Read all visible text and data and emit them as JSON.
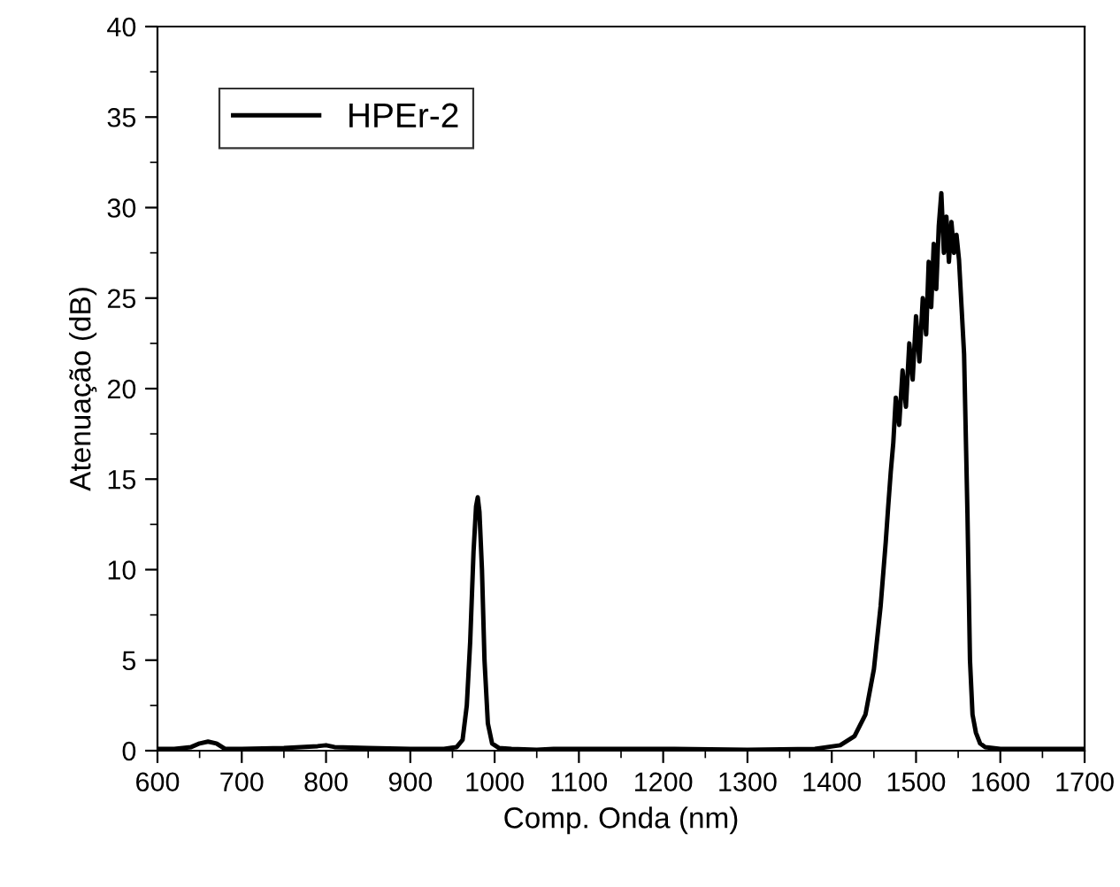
{
  "chart_data": {
    "type": "line",
    "xlabel": "Comp. Onda (nm)",
    "ylabel": "Atenuação (dB)",
    "xlim": [
      600,
      1700
    ],
    "ylim": [
      0,
      40
    ],
    "xticks": [
      600,
      700,
      800,
      900,
      1000,
      1100,
      1200,
      1300,
      1400,
      1500,
      1600,
      1700
    ],
    "yticks": [
      0,
      5,
      10,
      15,
      20,
      25,
      30,
      35,
      40
    ],
    "grid": false,
    "legend": "top left",
    "marker": "none",
    "line_style": "solid",
    "series": [
      {
        "name": "HPEr-2",
        "color": "#000000",
        "x": [
          600,
          620,
          640,
          650,
          660,
          670,
          680,
          700,
          750,
          790,
          800,
          810,
          850,
          900,
          940,
          955,
          962,
          967,
          971,
          975,
          978,
          980,
          982,
          985,
          988,
          992,
          997,
          1005,
          1020,
          1050,
          1070,
          1100,
          1200,
          1300,
          1380,
          1410,
          1427,
          1440,
          1450,
          1458,
          1464,
          1467,
          1470,
          1473,
          1476,
          1480,
          1484,
          1488,
          1492,
          1496,
          1500,
          1504,
          1508,
          1512,
          1515,
          1518,
          1521,
          1524,
          1527,
          1530,
          1533,
          1536,
          1539,
          1542,
          1545,
          1548,
          1551,
          1554,
          1557,
          1561,
          1564,
          1567,
          1571,
          1576,
          1582,
          1600,
          1650,
          1700
        ],
        "values": [
          0.1,
          0.1,
          0.2,
          0.4,
          0.5,
          0.4,
          0.1,
          0.1,
          0.15,
          0.25,
          0.3,
          0.2,
          0.15,
          0.1,
          0.1,
          0.2,
          0.6,
          2.5,
          6,
          11,
          13.5,
          14,
          13.2,
          10,
          5,
          1.5,
          0.4,
          0.15,
          0.1,
          0.05,
          0.1,
          0.1,
          0.1,
          0.05,
          0.1,
          0.3,
          0.8,
          2,
          4.5,
          8,
          11.5,
          13.5,
          15.4,
          17,
          19.5,
          18,
          21,
          19,
          22.5,
          20.5,
          24,
          21.5,
          25,
          23,
          27,
          24.5,
          28,
          25.5,
          29,
          30.8,
          27.5,
          29.5,
          27,
          29.2,
          27.5,
          28.5,
          27.1,
          24.5,
          21.9,
          13.1,
          5,
          2,
          1,
          0.4,
          0.2,
          0.1,
          0.1,
          0.1
        ]
      }
    ]
  }
}
